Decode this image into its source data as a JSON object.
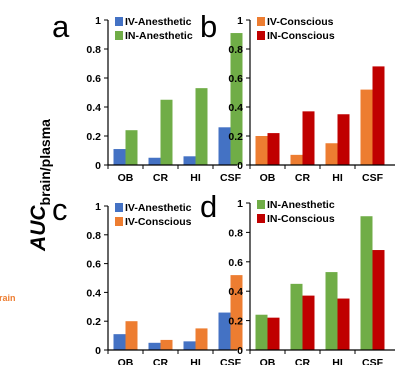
{
  "figure": {
    "y_axis_label_main": "AUC",
    "y_axis_label_sub": "brain/plasma",
    "side_fragment": "rain"
  },
  "colors": {
    "iv_anesthetic": "#4472C4",
    "in_anesthetic": "#70AD47",
    "iv_conscious": "#ED7D31",
    "in_conscious": "#C00000",
    "side_fragment": "#ED7D31"
  },
  "chart_data": [
    {
      "panel": "a",
      "type": "bar",
      "categories": [
        "OB",
        "CR",
        "HI",
        "CSF"
      ],
      "ylim": [
        0,
        1
      ],
      "yticks": [
        "0",
        "0.2",
        "0.4",
        "0.6",
        "0.8",
        "1"
      ],
      "legend_position": "top-left",
      "series": [
        {
          "name": "IV-Anesthetic",
          "color_key": "iv_anesthetic",
          "values": [
            0.11,
            0.05,
            0.06,
            0.26
          ]
        },
        {
          "name": "IN-Anesthetic",
          "color_key": "in_anesthetic",
          "values": [
            0.24,
            0.45,
            0.53,
            0.91
          ]
        }
      ]
    },
    {
      "panel": "b",
      "type": "bar",
      "categories": [
        "OB",
        "CR",
        "HI",
        "CSF"
      ],
      "ylim": [
        0,
        1
      ],
      "yticks": [
        "0",
        "0.2",
        "0.4",
        "0.6",
        "0.8",
        "1"
      ],
      "legend_position": "top-left",
      "series": [
        {
          "name": "IV-Conscious",
          "color_key": "iv_conscious",
          "values": [
            0.2,
            0.07,
            0.15,
            0.52
          ]
        },
        {
          "name": "IN-Conscious",
          "color_key": "in_conscious",
          "values": [
            0.22,
            0.37,
            0.35,
            0.68
          ]
        }
      ]
    },
    {
      "panel": "c",
      "type": "bar",
      "categories": [
        "OB",
        "CR",
        "HI",
        "CSF"
      ],
      "ylim": [
        0,
        1
      ],
      "yticks": [
        "0",
        "0.2",
        "0.4",
        "0.6",
        "0.8",
        "1"
      ],
      "legend_position": "top-left",
      "series": [
        {
          "name": "IV-Anesthetic",
          "color_key": "iv_anesthetic",
          "values": [
            0.11,
            0.05,
            0.06,
            0.26
          ]
        },
        {
          "name": "IV-Conscious",
          "color_key": "iv_conscious",
          "values": [
            0.2,
            0.07,
            0.15,
            0.52
          ]
        }
      ]
    },
    {
      "panel": "d",
      "type": "bar",
      "categories": [
        "OB",
        "CR",
        "HI",
        "CSF"
      ],
      "ylim": [
        0,
        1
      ],
      "yticks": [
        "0",
        "0.2",
        "0.4",
        "0.6",
        "0.8",
        "1"
      ],
      "legend_position": "top-left",
      "series": [
        {
          "name": "IN-Anesthetic",
          "color_key": "in_anesthetic",
          "values": [
            0.24,
            0.45,
            0.53,
            0.91
          ]
        },
        {
          "name": "IN-Conscious",
          "color_key": "in_conscious",
          "values": [
            0.22,
            0.37,
            0.35,
            0.68
          ]
        }
      ]
    }
  ]
}
